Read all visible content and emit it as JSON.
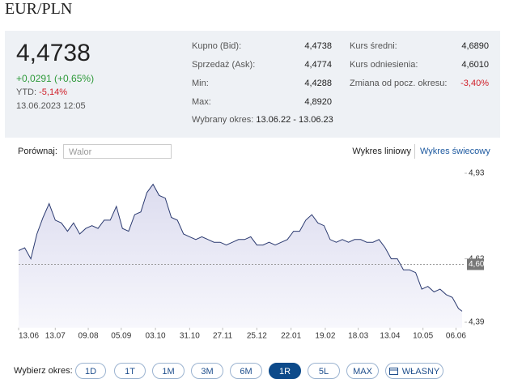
{
  "header": {
    "title": "EUR/PLN"
  },
  "quote": {
    "price": "4,4738",
    "change": "+0,0291 (+0,65%)",
    "ytd_label": "YTD:",
    "ytd_value": "-5,14%",
    "timestamp": "13.06.2023 12:05"
  },
  "stats_left": [
    {
      "label": "Kupno (Bid):",
      "value": "4,4738"
    },
    {
      "label": "Sprzedaż (Ask):",
      "value": "4,4774"
    },
    {
      "label": "Min:",
      "value": "4,4288"
    },
    {
      "label": "Max:",
      "value": "4,8920"
    }
  ],
  "period": {
    "label": "Wybrany okres:",
    "value": "13.06.22 - 13.06.23"
  },
  "stats_right": [
    {
      "label": "Kurs średni:",
      "value": "4,6890"
    },
    {
      "label": "Kurs odniesienia:",
      "value": "4,6010"
    },
    {
      "label": "Zmiana od pocz. okresu:",
      "value": "-3,40%"
    }
  ],
  "compare": {
    "label": "Porównaj:",
    "placeholder": "Walor"
  },
  "chart_tabs": [
    "Wykres liniowy",
    "Wykres świecowy"
  ],
  "chart_data": {
    "type": "line",
    "x": [
      0,
      5,
      10,
      15,
      20,
      25,
      30,
      35,
      40,
      45,
      50,
      55,
      60,
      65,
      70,
      75,
      80,
      85,
      90,
      95,
      100,
      105,
      110,
      115,
      120,
      125,
      130,
      135,
      140,
      145,
      150,
      155,
      160,
      165,
      170,
      175,
      180,
      185,
      190,
      195,
      200,
      205,
      210,
      215,
      220,
      225,
      230,
      235,
      240,
      245,
      250,
      255,
      260,
      265,
      270,
      275,
      280,
      285,
      290,
      295,
      300,
      305,
      310,
      315,
      320,
      325,
      330,
      335,
      340,
      345,
      350,
      355,
      360,
      363
    ],
    "series": [
      {
        "color": "#2b3a70",
        "values": [
          4.65,
          4.66,
          4.62,
          4.71,
          4.77,
          4.82,
          4.76,
          4.75,
          4.72,
          4.75,
          4.71,
          4.73,
          4.74,
          4.73,
          4.76,
          4.76,
          4.81,
          4.73,
          4.72,
          4.78,
          4.79,
          4.86,
          4.89,
          4.85,
          4.84,
          4.77,
          4.76,
          4.71,
          4.7,
          4.69,
          4.7,
          4.69,
          4.68,
          4.68,
          4.67,
          4.68,
          4.69,
          4.69,
          4.7,
          4.67,
          4.67,
          4.68,
          4.67,
          4.68,
          4.69,
          4.72,
          4.72,
          4.76,
          4.78,
          4.75,
          4.74,
          4.69,
          4.68,
          4.69,
          4.68,
          4.69,
          4.69,
          4.68,
          4.68,
          4.69,
          4.66,
          4.62,
          4.62,
          4.58,
          4.58,
          4.57,
          4.51,
          4.52,
          4.5,
          4.51,
          4.49,
          4.48,
          4.44,
          4.43
        ]
      }
    ],
    "xlim": [
      0,
      365
    ],
    "xticks": [
      {
        "value": 0,
        "label": "13.06"
      },
      {
        "value": 30,
        "label": "13.07"
      },
      {
        "value": 57,
        "label": "09.08"
      },
      {
        "value": 84,
        "label": "05.09"
      },
      {
        "value": 112,
        "label": "03.10"
      },
      {
        "value": 140,
        "label": "31.10"
      },
      {
        "value": 167,
        "label": "27.11"
      },
      {
        "value": 195,
        "label": "25.12"
      },
      {
        "value": 223,
        "label": "22.01"
      },
      {
        "value": 251,
        "label": "19.02"
      },
      {
        "value": 278,
        "label": "18.03"
      },
      {
        "value": 304,
        "label": "13.04"
      },
      {
        "value": 331,
        "label": "10.05"
      },
      {
        "value": 358,
        "label": "06.06"
      }
    ],
    "ylim": [
      4.37,
      4.94
    ],
    "yticks": [
      {
        "value": 4.93,
        "label": "4,93"
      },
      {
        "value": 4.62,
        "label": "4,62"
      },
      {
        "value": 4.39,
        "label": "4,39"
      }
    ],
    "current": {
      "value": 4.6,
      "label": "4,60"
    }
  },
  "period_selector": {
    "label": "Wybierz okres:",
    "options": [
      "1D",
      "1T",
      "1M",
      "3M",
      "6M",
      "1R",
      "5L",
      "MAX",
      "WŁASNY"
    ],
    "active_index": 5
  }
}
